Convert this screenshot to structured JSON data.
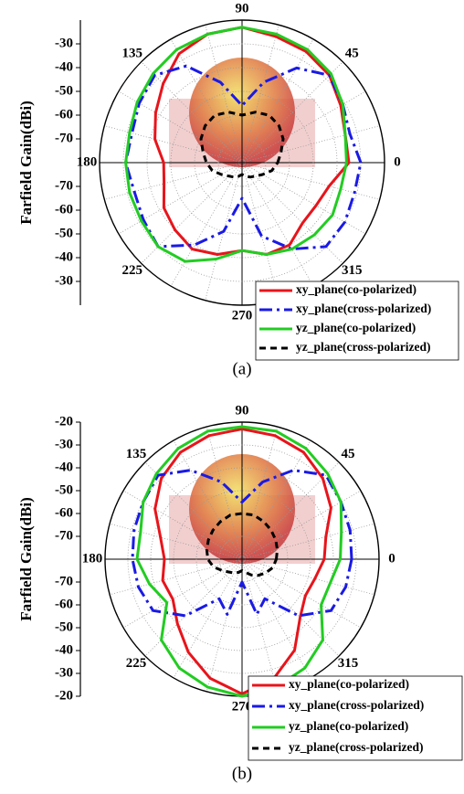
{
  "chart_data": [
    {
      "type": "polar",
      "caption": "(a)",
      "ylabel": "Farfield Gain(dBi)",
      "rlim": [
        -80,
        -20
      ],
      "rticks": [
        -30,
        -40,
        -50,
        -60,
        -70
      ],
      "thetaticks": [
        0,
        45,
        90,
        135,
        180,
        225,
        270,
        315
      ],
      "x": [
        0,
        15,
        30,
        45,
        60,
        75,
        90,
        105,
        120,
        135,
        150,
        165,
        180,
        195,
        210,
        225,
        240,
        255,
        270,
        285,
        300,
        315,
        330,
        345
      ],
      "series": [
        {
          "name": "xy_plane(co-polarized)",
          "color": "#e8141b",
          "linestyle": "solid",
          "values": [
            -35,
            -35,
            -32,
            -28,
            -26,
            -25,
            -23,
            -24,
            -27,
            -33,
            -38,
            -42,
            -47,
            -46,
            -42,
            -40,
            -38,
            -40,
            -43,
            -40,
            -40,
            -44,
            -44,
            -42
          ]
        },
        {
          "name": "xy_plane(cross-polarized)",
          "color": "#1a1ae6",
          "linestyle": "dashdot",
          "values": [
            -30,
            -33,
            -31,
            -28,
            -34,
            -45,
            -56,
            -45,
            -33,
            -28,
            -30,
            -32,
            -31,
            -33,
            -32,
            -30,
            -40,
            -50,
            -65,
            -48,
            -38,
            -30,
            -30,
            -31
          ]
        },
        {
          "name": "yz_plane(co-polarized)",
          "color": "#22cc22",
          "linestyle": "solid",
          "values": [
            -36,
            -35,
            -31,
            -27,
            -25,
            -24,
            -23,
            -24,
            -25,
            -27,
            -29,
            -31,
            -31,
            -31,
            -31,
            -30,
            -32,
            -38,
            -43,
            -40,
            -38,
            -37,
            -36,
            -37
          ]
        },
        {
          "name": "yz_plane(cross-polarized)",
          "color": "#000000",
          "linestyle": "dashed",
          "values": [
            -65,
            -63,
            -60,
            -58,
            -57,
            -58,
            -60,
            -58,
            -57,
            -58,
            -60,
            -63,
            -65,
            -67,
            -70,
            -72,
            -73,
            -74,
            -75,
            -74,
            -73,
            -72,
            -70,
            -67
          ]
        }
      ]
    },
    {
      "type": "polar",
      "caption": "(b)",
      "ylabel": "Farfield Gain(dBi)",
      "rlim": [
        -80,
        -20
      ],
      "rticks": [
        -20,
        -30,
        -40,
        -50,
        -60,
        -70
      ],
      "thetaticks": [
        0,
        45,
        90,
        135,
        180,
        225,
        270,
        315
      ],
      "x": [
        0,
        15,
        30,
        45,
        60,
        75,
        90,
        105,
        120,
        135,
        150,
        165,
        180,
        195,
        210,
        225,
        240,
        255,
        270,
        285,
        300,
        315,
        330,
        345
      ],
      "series": [
        {
          "name": "xy_plane(co-polarized)",
          "color": "#e8141b",
          "linestyle": "solid",
          "values": [
            -44,
            -42,
            -35,
            -30,
            -26,
            -24,
            -23,
            -24,
            -26,
            -30,
            -36,
            -43,
            -46,
            -44,
            -45,
            -40,
            -33,
            -26,
            -21,
            -26,
            -34,
            -44,
            -48,
            -47
          ]
        },
        {
          "name": "xy_plane(cross-polarized)",
          "color": "#1a1ae6",
          "linestyle": "dashdot",
          "values": [
            -32,
            -31,
            -30,
            -28,
            -35,
            -45,
            -55,
            -45,
            -35,
            -28,
            -30,
            -31,
            -32,
            -33,
            -35,
            -45,
            -60,
            -55,
            -70,
            -55,
            -60,
            -45,
            -35,
            -33
          ]
        },
        {
          "name": "yz_plane(co-polarized)",
          "color": "#22cc22",
          "linestyle": "solid",
          "values": [
            -37,
            -35,
            -30,
            -27,
            -24,
            -22,
            -22,
            -22,
            -24,
            -27,
            -30,
            -34,
            -34,
            -38,
            -42,
            -30,
            -25,
            -22,
            -20,
            -22,
            -25,
            -30,
            -40,
            -40
          ]
        },
        {
          "name": "yz_plane(cross-polarized)",
          "color": "#000000",
          "linestyle": "dashed",
          "values": [
            -65,
            -64,
            -63,
            -62,
            -61,
            -60,
            -60,
            -60,
            -61,
            -62,
            -63,
            -64,
            -65,
            -67,
            -70,
            -72,
            -73,
            -74,
            -75,
            -74,
            -72,
            -70,
            -68,
            -66
          ]
        }
      ]
    }
  ]
}
